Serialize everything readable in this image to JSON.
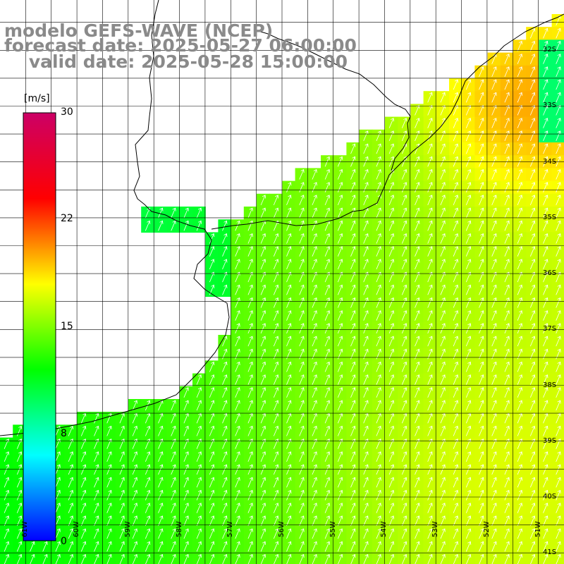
{
  "title": {
    "line1": "modelo GEFS-WAVE (NCEP)",
    "line2": "forecast date: 2025-05-27 06:00:00",
    "line3": "    valid date: 2025-05-28 15:00:00"
  },
  "colorbar": {
    "unit": "[m/s]",
    "ticks": [
      "30",
      "22",
      "15",
      "8",
      "0"
    ],
    "tick_values": [
      30,
      22,
      15,
      8,
      0
    ],
    "colors": [
      "#0000ff",
      "#00ffff",
      "#00ff00",
      "#ffff00",
      "#ff0000",
      "#cc0066"
    ]
  },
  "grid": {
    "lat_labels": [
      "32S",
      "33S",
      "34S",
      "35S",
      "36S",
      "37S",
      "38S",
      "39S",
      "40S",
      "41S"
    ],
    "lon_labels": [
      "61W",
      "60W",
      "59W",
      "58W",
      "57W",
      "56W",
      "55W",
      "54W",
      "53W",
      "52W",
      "51W"
    ]
  },
  "chart_data": {
    "type": "heatmap",
    "variable": "wind speed with direction arrows",
    "unit": "m/s",
    "range": [
      0,
      30
    ],
    "lon_range": [
      -61.5,
      -50.5
    ],
    "lat_range": [
      -41.2,
      -31.1
    ],
    "approx_values": [
      {
        "region": "Rio de la Plata estuary",
        "speed": 10
      },
      {
        "region": "Buenos Aires coast offshore",
        "speed": 13
      },
      {
        "region": "Uruguay coast",
        "speed": 16
      },
      {
        "region": "offshore Rio Grande do Sul",
        "speed": 18
      },
      {
        "region": "southern open ocean",
        "speed": 15
      }
    ],
    "arrow_direction": "toward north-northeast"
  }
}
